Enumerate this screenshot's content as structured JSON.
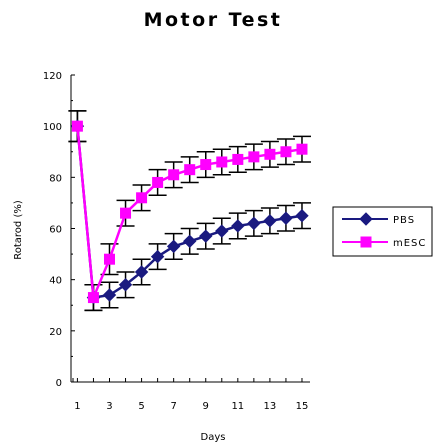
{
  "chart_data": {
    "type": "line",
    "title": "Motor Test",
    "xlabel": "Days",
    "ylabel": "Rotarod (%)",
    "x": [
      1,
      2,
      3,
      4,
      5,
      6,
      7,
      8,
      9,
      10,
      11,
      12,
      13,
      14,
      15
    ],
    "x_tick_labels": [
      "1",
      "3",
      "5",
      "7",
      "9",
      "11",
      "13",
      "15"
    ],
    "ylim": [
      0,
      120
    ],
    "y_tick_labels": [
      "0",
      "20",
      "40",
      "60",
      "80",
      "100",
      "120"
    ],
    "grid": false,
    "legend_position": "right",
    "series": [
      {
        "name": "PBS",
        "color": "#1a1a80",
        "marker": "diamond",
        "values": [
          100,
          33,
          34,
          38,
          43,
          49,
          53,
          55,
          57,
          59,
          61,
          62,
          63,
          64,
          65
        ],
        "errors": [
          6,
          5,
          5,
          5,
          5,
          5,
          5,
          5,
          5,
          5,
          5,
          5,
          5,
          5,
          5
        ]
      },
      {
        "name": "mESC",
        "color": "#ff00ff",
        "marker": "square",
        "values": [
          100,
          33,
          48,
          66,
          72,
          78,
          81,
          83,
          85,
          86,
          87,
          88,
          89,
          90,
          91
        ],
        "errors": [
          6,
          5,
          6,
          5,
          5,
          5,
          5,
          5,
          5,
          5,
          5,
          5,
          5,
          5,
          5
        ]
      }
    ]
  }
}
